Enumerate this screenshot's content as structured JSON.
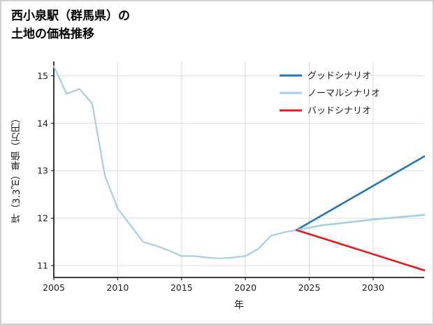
{
  "title": {
    "line1": "西小泉駅（群馬県）の",
    "line2": "土地の価格推移"
  },
  "axes": {
    "x_label": "年",
    "y_label": "坪（3.3㎡）単価（万円）"
  },
  "legend": [
    {
      "label": "グッドシナリオ",
      "color": "#1f78b4"
    },
    {
      "label": "ノーマルシナリオ",
      "color": "#a6cee3"
    },
    {
      "label": "バッドシナリオ",
      "color": "#e31a1c"
    }
  ],
  "chart_data": {
    "type": "line",
    "title": "西小泉駅（群馬県）の土地の価格推移",
    "xlabel": "年",
    "ylabel": "坪（3.3㎡）単価（万円）",
    "xlim": [
      2005,
      2034
    ],
    "ylim": [
      10.75,
      15.3
    ],
    "xticks": [
      2005,
      2010,
      2015,
      2020,
      2025,
      2030
    ],
    "yticks": [
      11,
      12,
      13,
      14,
      15
    ],
    "grid": true,
    "legend_position": "upper right",
    "colors": {
      "axis": "#222222",
      "grid": "#dcdcdc",
      "tick_text": "#1a1a1a"
    },
    "series": [
      {
        "name": "history",
        "color": "#a6cee3",
        "width": 2.2,
        "x": [
          2005,
          2006,
          2007,
          2008,
          2009,
          2010,
          2011,
          2012,
          2013,
          2014,
          2015,
          2016,
          2017,
          2018,
          2019,
          2020,
          2021,
          2022,
          2023,
          2024
        ],
        "y": [
          15.2,
          14.62,
          14.72,
          14.42,
          12.9,
          12.2,
          11.85,
          11.5,
          11.42,
          11.32,
          11.2,
          11.2,
          11.17,
          11.15,
          11.17,
          11.2,
          11.35,
          11.63,
          11.7,
          11.75
        ]
      },
      {
        "name": "グッドシナリオ",
        "color": "#1f78b4",
        "width": 2.6,
        "x": [
          2024,
          2034
        ],
        "y": [
          11.75,
          13.3
        ]
      },
      {
        "name": "ノーマルシナリオ",
        "color": "#a6cee3",
        "width": 2.6,
        "x": [
          2024,
          2026,
          2030,
          2034
        ],
        "y": [
          11.75,
          11.85,
          11.97,
          12.07
        ]
      },
      {
        "name": "バッドシナリオ",
        "color": "#e31a1c",
        "width": 2.6,
        "x": [
          2024,
          2034
        ],
        "y": [
          11.75,
          10.9
        ]
      }
    ]
  }
}
